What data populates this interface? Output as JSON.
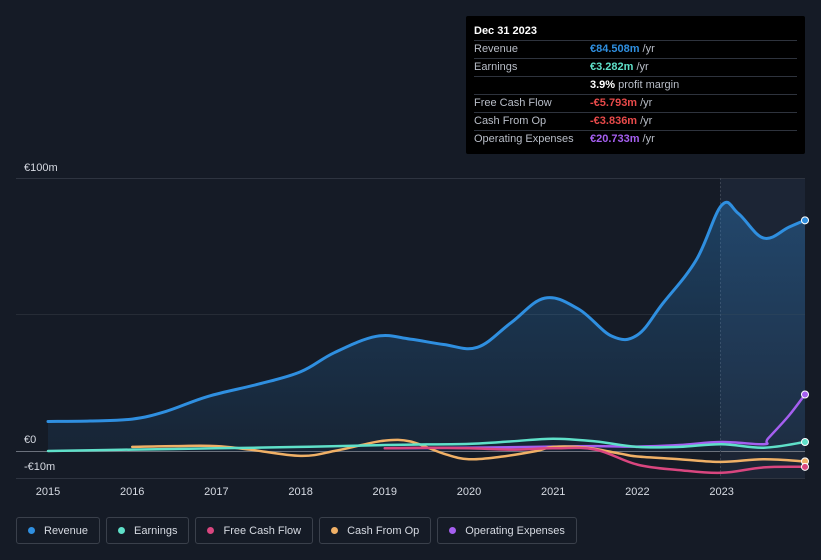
{
  "tooltip": {
    "date": "Dec 31 2023",
    "rows": [
      {
        "label": "Revenue",
        "value": "€84.508m",
        "unit": "/yr",
        "color": "#2f8fe0"
      },
      {
        "label": "Earnings",
        "value": "€3.282m",
        "unit": "/yr",
        "color": "#5fe0c9"
      },
      {
        "label": "",
        "value": "3.9%",
        "unit": "profit margin",
        "color": "#ffffff"
      },
      {
        "label": "Free Cash Flow",
        "value": "-€5.793m",
        "unit": "/yr",
        "color": "#e84a4a"
      },
      {
        "label": "Cash From Op",
        "value": "-€3.836m",
        "unit": "/yr",
        "color": "#e84a4a"
      },
      {
        "label": "Operating Expenses",
        "value": "€20.733m",
        "unit": "/yr",
        "color": "#a55ff0"
      }
    ]
  },
  "legend": [
    {
      "label": "Revenue",
      "color": "#2f8fe0"
    },
    {
      "label": "Earnings",
      "color": "#5fe0c9"
    },
    {
      "label": "Free Cash Flow",
      "color": "#d9467f"
    },
    {
      "label": "Cash From Op",
      "color": "#f0b066"
    },
    {
      "label": "Operating Expenses",
      "color": "#a55ff0"
    }
  ],
  "chart_data": {
    "type": "line",
    "title": "",
    "xlabel": "",
    "ylabel": "",
    "y_labels": {
      "top": "€100m",
      "zero": "€0",
      "bottom": "-€10m"
    },
    "ylim": [
      -10,
      100
    ],
    "xlim": [
      2015,
      2024
    ],
    "x_ticks": [
      "2015",
      "2016",
      "2017",
      "2018",
      "2019",
      "2020",
      "2021",
      "2022",
      "2023"
    ],
    "series": [
      {
        "name": "Revenue",
        "color": "#2f8fe0",
        "x": [
          2015,
          2015.5,
          2016,
          2016.4,
          2016.9,
          2017.5,
          2018,
          2018.4,
          2018.9,
          2019.3,
          2019.7,
          2020.1,
          2020.5,
          2020.9,
          2021.3,
          2021.7,
          2022,
          2022.3,
          2022.7,
          2023,
          2023.2,
          2023.5,
          2023.8,
          2024
        ],
        "values": [
          10.8,
          11,
          11.7,
          14.5,
          20,
          24.5,
          29,
          36,
          42,
          41,
          39,
          38,
          47,
          56,
          52,
          42,
          42.5,
          54,
          70,
          90,
          87,
          78,
          82,
          84.5
        ]
      },
      {
        "name": "Earnings",
        "color": "#5fe0c9",
        "x": [
          2015,
          2016,
          2017,
          2018,
          2019,
          2019.5,
          2020,
          2020.5,
          2021,
          2021.5,
          2022,
          2022.5,
          2023,
          2023.5,
          2024
        ],
        "values": [
          0,
          0.5,
          1,
          1.5,
          2.2,
          2.4,
          2.6,
          3.5,
          4.5,
          3.5,
          1.5,
          1.5,
          2.5,
          1.2,
          3.3
        ]
      },
      {
        "name": "Free Cash Flow",
        "color": "#d9467f",
        "x": [
          2019,
          2019.5,
          2020,
          2020.5,
          2021,
          2021.5,
          2022,
          2022.5,
          2023,
          2023.5,
          2024
        ],
        "values": [
          1,
          1.2,
          1,
          0.5,
          1,
          0.5,
          -5,
          -7,
          -8,
          -6,
          -5.8
        ]
      },
      {
        "name": "Cash From Op",
        "color": "#f0b066",
        "x": [
          2016,
          2016.5,
          2017,
          2017.4,
          2018,
          2018.4,
          2018.7,
          2019,
          2019.3,
          2019.7,
          2020,
          2020.4,
          2020.8,
          2021,
          2021.4,
          2021.8,
          2022,
          2022.5,
          2023,
          2023.5,
          2024
        ],
        "values": [
          1.5,
          1.8,
          1.8,
          0.5,
          -1.8,
          0,
          2,
          3.8,
          3.5,
          -1,
          -3,
          -2,
          0,
          1.5,
          1.2,
          -1,
          -2,
          -3,
          -4,
          -3,
          -3.8
        ]
      },
      {
        "name": "Operating Expenses",
        "color": "#a55ff0",
        "x": [
          2019,
          2020,
          2021,
          2021.5,
          2022,
          2022.5,
          2023,
          2023.5,
          2023.55,
          2023.8,
          2024
        ],
        "values": [
          1,
          1.2,
          1.6,
          1.8,
          1.6,
          2.2,
          3.3,
          2.5,
          4.5,
          13,
          20.7
        ]
      }
    ]
  }
}
